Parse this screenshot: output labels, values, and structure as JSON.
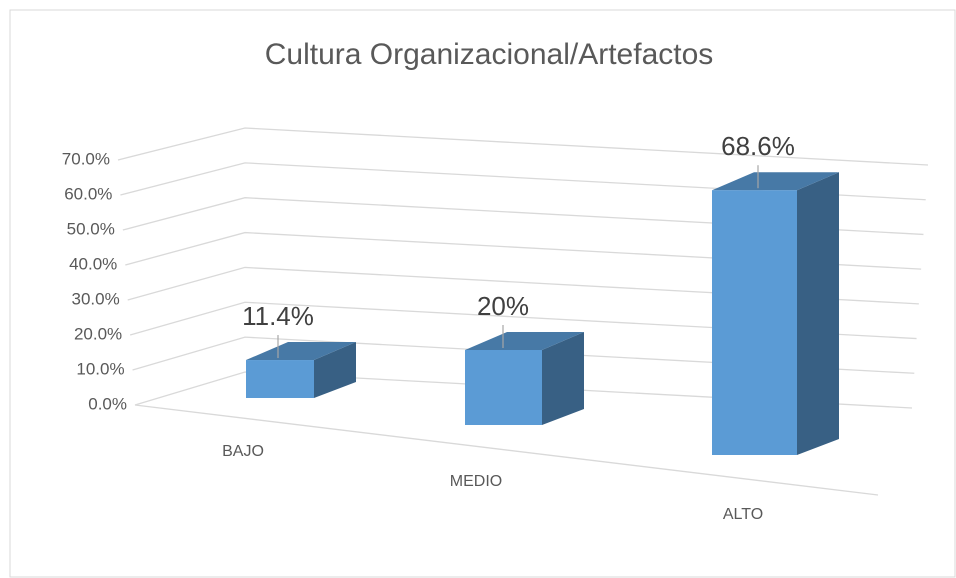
{
  "chart_data": {
    "type": "bar3d",
    "title": "Cultura Organizacional/Artefactos",
    "categories": [
      "BAJO",
      "MEDIO",
      "ALTO"
    ],
    "values": [
      11.4,
      20,
      68.6
    ],
    "value_labels": [
      "11.4%",
      "20%",
      "68.6%"
    ],
    "color": "#5b9bd5",
    "ylim": [
      0,
      70
    ],
    "yticks": [
      {
        "value": 0,
        "label": "0.0%"
      },
      {
        "value": 10,
        "label": "10.0%"
      },
      {
        "value": 20,
        "label": "20.0%"
      },
      {
        "value": 30,
        "label": "30.0%"
      },
      {
        "value": 40,
        "label": "40.0%"
      },
      {
        "value": 50,
        "label": "50.0%"
      },
      {
        "value": 60,
        "label": "60.0%"
      },
      {
        "value": 70,
        "label": "70.0%"
      }
    ],
    "grid": true
  }
}
